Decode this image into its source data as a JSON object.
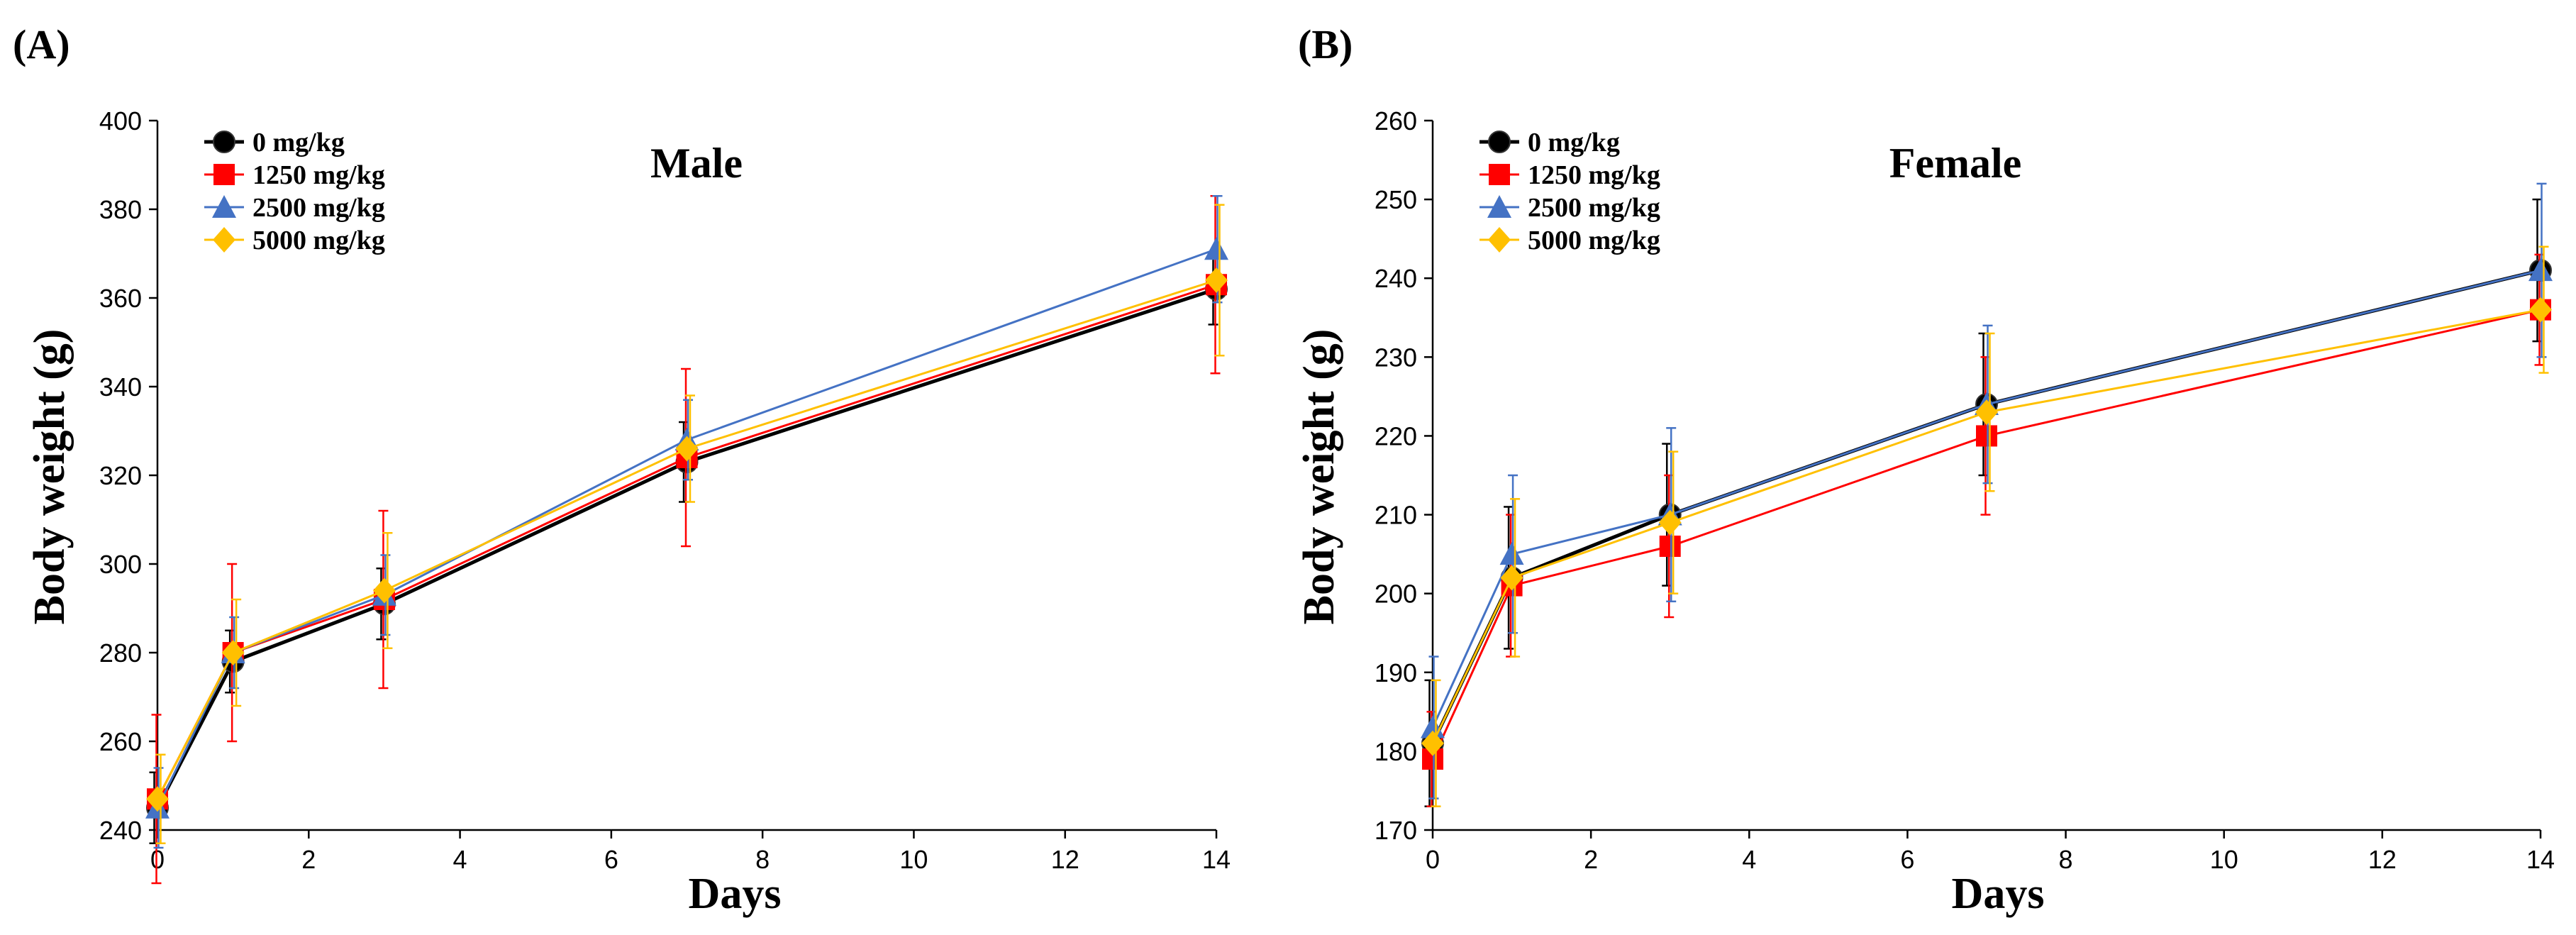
{
  "chart_data": [
    {
      "panel_label": "(A)",
      "type": "line",
      "title": "Male",
      "xlabel": "Days",
      "ylabel": "Body  weight (g)",
      "xlim": [
        0,
        14
      ],
      "ylim": [
        240,
        400
      ],
      "xticks": [
        0,
        2,
        4,
        6,
        8,
        10,
        12,
        14
      ],
      "yticks": [
        240,
        260,
        280,
        300,
        320,
        340,
        360,
        380,
        400
      ],
      "x": [
        0,
        1,
        3,
        7,
        14
      ],
      "legend_position": "top-left",
      "series": [
        {
          "name": "0 mg/kg",
          "color": "#000000",
          "marker": "circle",
          "values": [
            245,
            278,
            291,
            323,
            362
          ],
          "errors": [
            8,
            7,
            8,
            9,
            8
          ]
        },
        {
          "name": "1250 mg/kg",
          "color": "#ff0000",
          "marker": "square",
          "values": [
            247,
            280,
            292,
            324,
            363
          ],
          "errors": [
            19,
            20,
            20,
            20,
            20
          ]
        },
        {
          "name": "2500 mg/kg",
          "color": "#4472c4",
          "marker": "triangle",
          "values": [
            245,
            280,
            293,
            328,
            371
          ],
          "errors": [
            9,
            8,
            9,
            9,
            12
          ]
        },
        {
          "name": "5000 mg/kg",
          "color": "#ffc000",
          "marker": "diamond",
          "values": [
            247,
            280,
            294,
            326,
            364
          ],
          "errors": [
            10,
            12,
            13,
            12,
            17
          ]
        }
      ]
    },
    {
      "panel_label": "(B)",
      "type": "line",
      "title": "Female",
      "xlabel": "Days",
      "ylabel": "Body  weight (g)",
      "xlim": [
        0,
        14
      ],
      "ylim": [
        170,
        260
      ],
      "xticks": [
        0,
        2,
        4,
        6,
        8,
        10,
        12,
        14
      ],
      "yticks": [
        170,
        180,
        190,
        200,
        210,
        220,
        230,
        240,
        250,
        260
      ],
      "x": [
        0,
        1,
        3,
        7,
        14
      ],
      "legend_position": "top-left",
      "series": [
        {
          "name": "0 mg/kg",
          "color": "#000000",
          "marker": "circle",
          "values": [
            181,
            202,
            210,
            224,
            241
          ],
          "errors": [
            8,
            9,
            9,
            9,
            9
          ]
        },
        {
          "name": "1250 mg/kg",
          "color": "#ff0000",
          "marker": "square",
          "values": [
            179,
            201,
            206,
            220,
            236
          ],
          "errors": [
            6,
            9,
            9,
            10,
            7
          ]
        },
        {
          "name": "2500 mg/kg",
          "color": "#4472c4",
          "marker": "triangle",
          "values": [
            183,
            205,
            210,
            224,
            241
          ],
          "errors": [
            9,
            10,
            11,
            10,
            11
          ]
        },
        {
          "name": "5000 mg/kg",
          "color": "#ffc000",
          "marker": "diamond",
          "values": [
            181,
            202,
            209,
            223,
            236
          ],
          "errors": [
            8,
            10,
            9,
            10,
            8
          ]
        }
      ]
    }
  ]
}
